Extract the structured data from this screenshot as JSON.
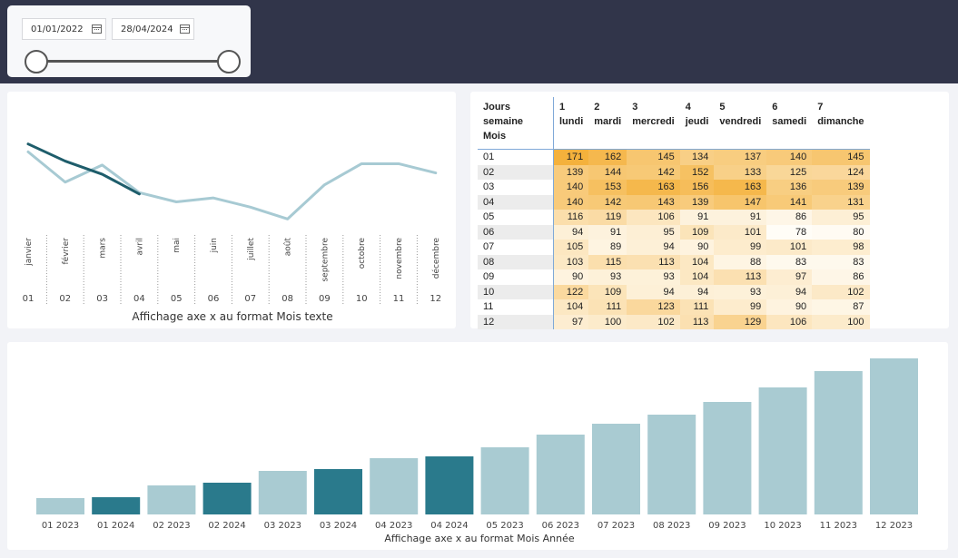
{
  "date_slicer": {
    "start_date": "01/01/2022",
    "end_date": "28/04/2024"
  },
  "line_chart": {
    "caption": "Affichage axe x au format Mois texte",
    "month_names": [
      "janvier",
      "février",
      "mars",
      "avril",
      "mai",
      "juin",
      "juillet",
      "août",
      "septembre",
      "octobre",
      "novembre",
      "décembre"
    ],
    "month_numbers": [
      "01",
      "02",
      "03",
      "04",
      "05",
      "06",
      "07",
      "08",
      "09",
      "10",
      "11",
      "12"
    ]
  },
  "chart_data": [
    {
      "type": "line",
      "title": "Affichage axe x au format Mois texte",
      "categories": [
        "janvier",
        "février",
        "mars",
        "avril",
        "mai",
        "juin",
        "juillet",
        "août",
        "septembre",
        "octobre",
        "novembre",
        "décembre"
      ],
      "ylim": [
        0,
        100
      ],
      "series": [
        {
          "name": "light",
          "color": "#a7cad3",
          "values": [
            68,
            45,
            58,
            37,
            30,
            33,
            26,
            17,
            43,
            59,
            59,
            52
          ]
        },
        {
          "name": "dark",
          "color": "#1e5d6b",
          "values": [
            74,
            61,
            51,
            36,
            null,
            null,
            null,
            null,
            null,
            null,
            null,
            null
          ]
        }
      ]
    },
    {
      "type": "table",
      "row_header": "Mois",
      "column_header_title": "Jours semaine",
      "columns": [
        {
          "num": "1",
          "name": "lundi"
        },
        {
          "num": "2",
          "name": "mardi"
        },
        {
          "num": "3",
          "name": "mercredi"
        },
        {
          "num": "4",
          "name": "jeudi"
        },
        {
          "num": "5",
          "name": "vendredi"
        },
        {
          "num": "6",
          "name": "samedi"
        },
        {
          "num": "7",
          "name": "dimanche"
        }
      ],
      "rows": [
        {
          "mois": "01",
          "values": [
            171,
            162,
            145,
            134,
            137,
            140,
            145
          ]
        },
        {
          "mois": "02",
          "values": [
            139,
            144,
            142,
            152,
            133,
            125,
            124
          ]
        },
        {
          "mois": "03",
          "values": [
            140,
            153,
            163,
            156,
            163,
            136,
            139
          ]
        },
        {
          "mois": "04",
          "values": [
            140,
            142,
            143,
            139,
            147,
            141,
            131
          ]
        },
        {
          "mois": "05",
          "values": [
            116,
            119,
            106,
            91,
            91,
            86,
            95
          ]
        },
        {
          "mois": "06",
          "values": [
            94,
            91,
            95,
            109,
            101,
            78,
            80
          ]
        },
        {
          "mois": "07",
          "values": [
            105,
            89,
            94,
            90,
            99,
            101,
            98
          ]
        },
        {
          "mois": "08",
          "values": [
            103,
            115,
            113,
            104,
            88,
            83,
            83
          ]
        },
        {
          "mois": "09",
          "values": [
            90,
            93,
            93,
            104,
            113,
            97,
            86
          ]
        },
        {
          "mois": "10",
          "values": [
            122,
            109,
            94,
            94,
            93,
            94,
            102
          ]
        },
        {
          "mois": "11",
          "values": [
            104,
            111,
            123,
            111,
            99,
            90,
            87
          ]
        },
        {
          "mois": "12",
          "values": [
            97,
            100,
            102,
            113,
            129,
            106,
            100
          ]
        }
      ],
      "color_min": "#fffdf7",
      "color_max": "#f4b13c"
    },
    {
      "type": "bar",
      "title": "Affichage axe x au format Mois Année",
      "xlabel": "Affichage axe x au format Mois Année",
      "categories": [
        "01 2023",
        "01 2024",
        "02 2023",
        "02 2024",
        "03 2023",
        "03 2024",
        "04 2023",
        "04 2024",
        "05 2023",
        "06 2023",
        "07 2023",
        "08 2023",
        "09 2023",
        "10 2023",
        "11 2023",
        "12 2023"
      ],
      "values": [
        9,
        9.5,
        16,
        17.5,
        24,
        25,
        31,
        32,
        37,
        44,
        50,
        55,
        62,
        70,
        79,
        86
      ],
      "highlight": [
        false,
        true,
        false,
        true,
        false,
        true,
        false,
        true,
        false,
        false,
        false,
        false,
        false,
        false,
        false,
        false
      ],
      "color": "#a9cbd2",
      "highlight_color": "#2a7a8c",
      "ylim": [
        0,
        86
      ]
    }
  ]
}
